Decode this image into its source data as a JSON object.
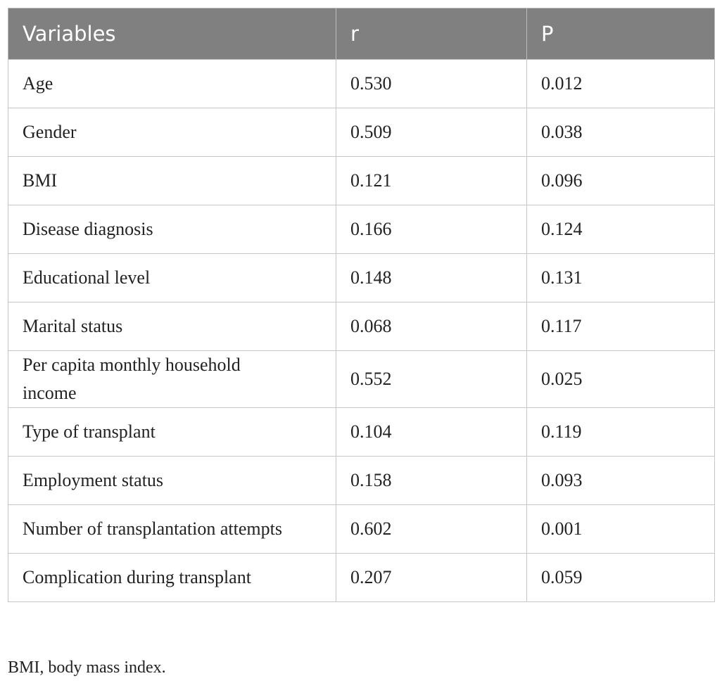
{
  "table": {
    "header": [
      "Variables",
      "r",
      "P"
    ],
    "rows": [
      [
        "Age",
        "0.530",
        "0.012"
      ],
      [
        "Gender",
        "0.509",
        "0.038"
      ],
      [
        "BMI",
        "0.121",
        "0.096"
      ],
      [
        "Disease diagnosis",
        "0.166",
        "0.124"
      ],
      [
        "Educational level",
        "0.148",
        "0.131"
      ],
      [
        "Marital status",
        "0.068",
        "0.117"
      ],
      [
        "Per capita monthly household income",
        "0.552",
        "0.025"
      ],
      [
        "Type of transplant",
        "0.104",
        "0.119"
      ],
      [
        "Employment status",
        "0.158",
        "0.093"
      ],
      [
        "Number of transplantation attempts",
        "0.602",
        "0.001"
      ],
      [
        "Complication during transplant",
        "0.207",
        "0.059"
      ]
    ]
  },
  "footnote": "BMI, body mass index."
}
